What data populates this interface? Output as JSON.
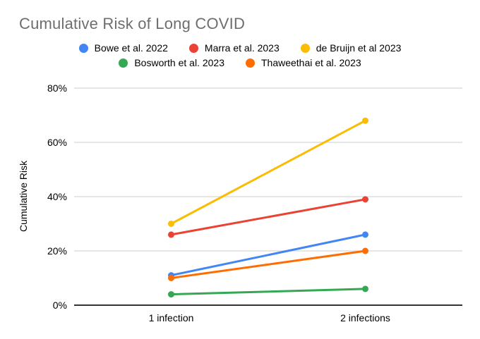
{
  "chart_data": {
    "type": "line",
    "title": "Cumulative Risk of Long COVID",
    "xlabel": "",
    "ylabel": "Cumulative Risk",
    "categories": [
      "1 infection",
      "2 infections"
    ],
    "yticks": [
      "0%",
      "20%",
      "40%",
      "60%",
      "80%"
    ],
    "ylim": [
      0,
      80
    ],
    "grid": true,
    "legend_position": "top",
    "series": [
      {
        "name": "Bowe et al. 2022",
        "color": "#4285F4",
        "values": [
          11,
          26
        ]
      },
      {
        "name": "Marra et al. 2023",
        "color": "#EA4335",
        "values": [
          26,
          39
        ]
      },
      {
        "name": "de Bruijn et al 2023",
        "color": "#FBBC04",
        "values": [
          30,
          68
        ]
      },
      {
        "name": "Bosworth et al. 2023",
        "color": "#34A853",
        "values": [
          4,
          6
        ]
      },
      {
        "name": "Thaweethai et al. 2023",
        "color": "#FF6D01",
        "values": [
          10,
          20
        ]
      }
    ]
  },
  "colors": {
    "background": "#ffffff",
    "title_text": "#6e6e6e",
    "text": "#000000",
    "grid": "#e6e6e6",
    "axis": "#333333"
  }
}
